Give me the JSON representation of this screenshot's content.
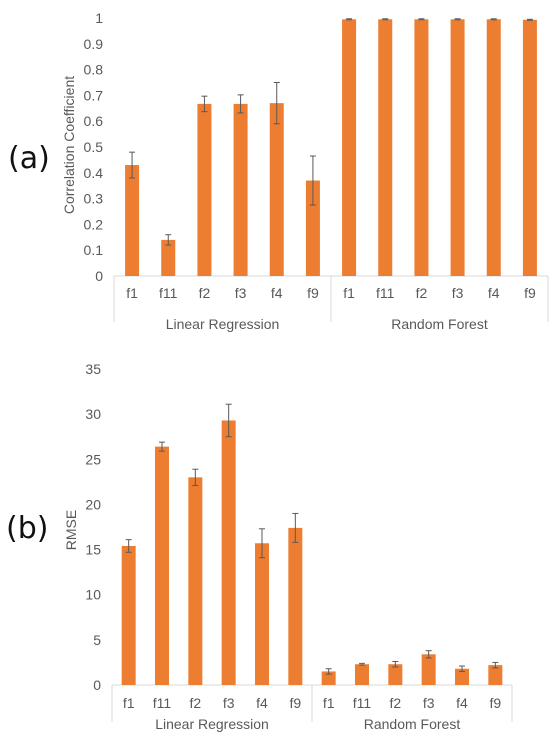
{
  "chart_data": [
    {
      "panel_label": "(a)",
      "type": "bar",
      "ylabel": "Correlation Coefficient",
      "ylim": [
        0,
        1
      ],
      "yticks": [
        "0",
        "0.1",
        "0.2",
        "0.3",
        "0.4",
        "0.5",
        "0.6",
        "0.7",
        "0.8",
        "0.9",
        "1"
      ],
      "groups": [
        "Linear Regression",
        "Random Forest"
      ],
      "categories": [
        "f1",
        "f11",
        "f2",
        "f3",
        "f4",
        "f9",
        "f1",
        "f11",
        "f2",
        "f3",
        "f4",
        "f9"
      ],
      "values": [
        0.43,
        0.14,
        0.667,
        0.667,
        0.67,
        0.37,
        0.995,
        0.995,
        0.995,
        0.995,
        0.995,
        0.993
      ],
      "errors": [
        0.05,
        0.02,
        0.03,
        0.035,
        0.08,
        0.095,
        0.002,
        0.002,
        0.002,
        0.002,
        0.002,
        0.002
      ],
      "bar_color": "#ED7D31",
      "grid": false
    },
    {
      "panel_label": "(b)",
      "type": "bar",
      "ylabel": "RMSE",
      "ylim": [
        0,
        35
      ],
      "yticks": [
        "0",
        "5",
        "10",
        "15",
        "20",
        "25",
        "30",
        "35"
      ],
      "groups": [
        "Linear Regression",
        "Random Forest"
      ],
      "categories": [
        "f1",
        "f11",
        "f2",
        "f3",
        "f4",
        "f9",
        "f1",
        "f11",
        "f2",
        "f3",
        "f4",
        "f9"
      ],
      "values": [
        15.4,
        26.4,
        23.0,
        29.3,
        15.7,
        17.4,
        1.5,
        2.3,
        2.3,
        3.4,
        1.8,
        2.2
      ],
      "errors": [
        0.7,
        0.5,
        0.9,
        1.8,
        1.6,
        1.6,
        0.3,
        0.1,
        0.3,
        0.4,
        0.3,
        0.3
      ],
      "bar_color": "#ED7D31",
      "grid": false
    }
  ]
}
